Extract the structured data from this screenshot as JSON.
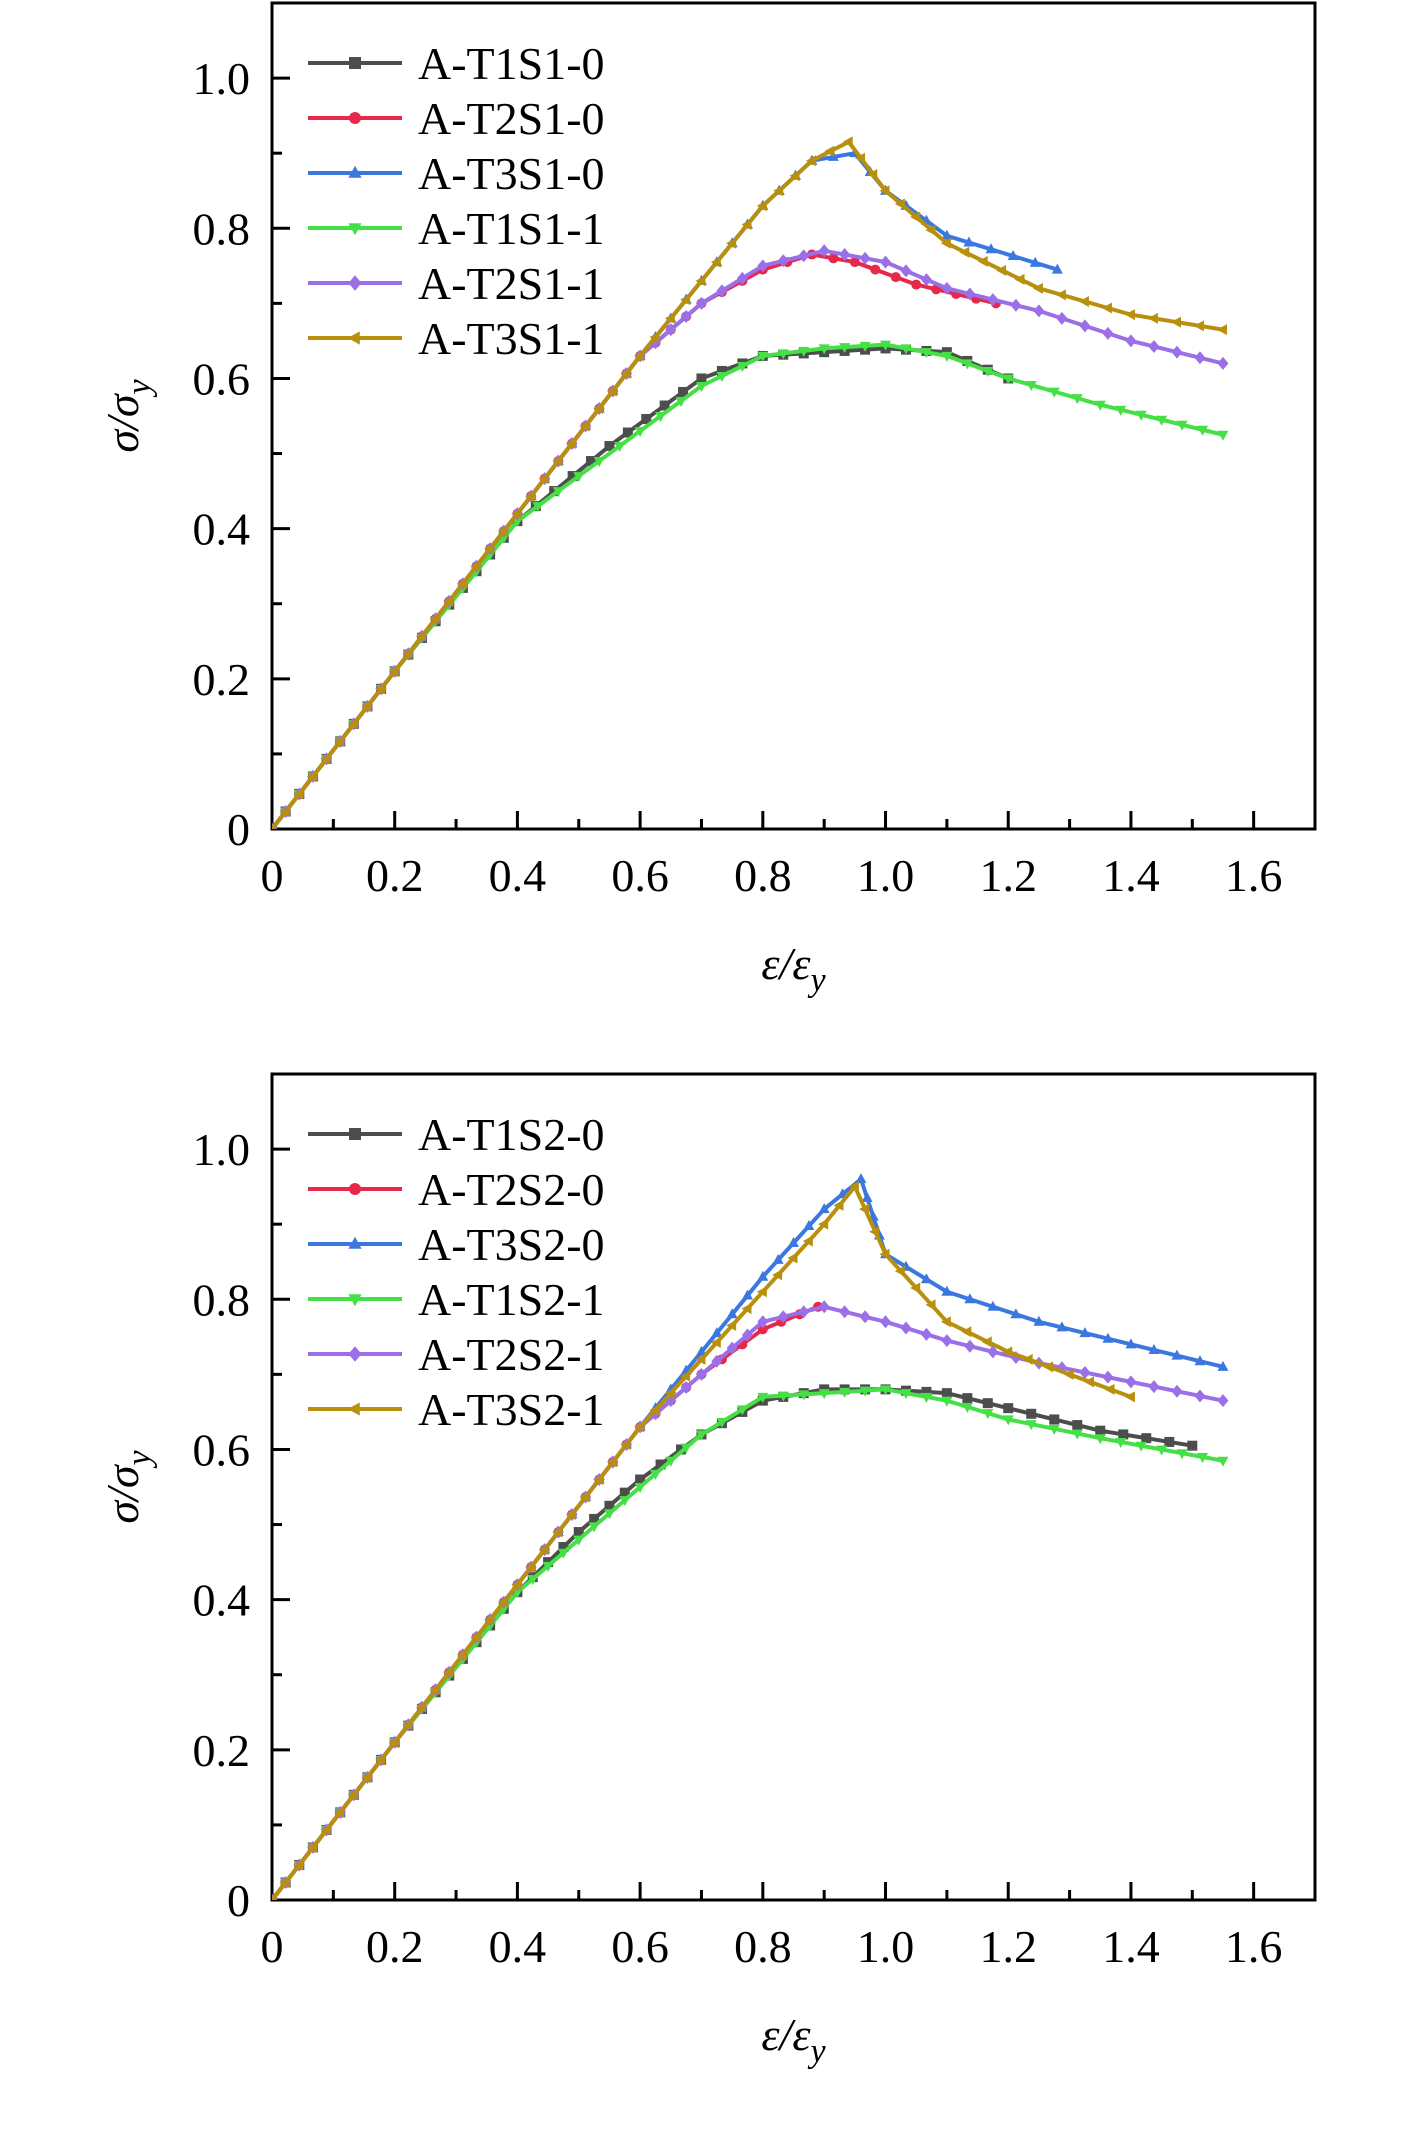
{
  "chart_data": [
    {
      "type": "line",
      "title": "",
      "xlabel": "ε/ε_y",
      "ylabel": "σ/σ_y",
      "xlim": [
        0,
        1.7
      ],
      "ylim": [
        0,
        1.1
      ],
      "xticks": [
        0,
        0.2,
        0.4,
        0.6,
        0.8,
        1.0,
        1.2,
        1.4,
        1.6
      ],
      "yticks": [
        0,
        0.2,
        0.4,
        0.6,
        0.8,
        1.0
      ],
      "xtick_labels": [
        "0",
        "0.2",
        "0.4",
        "0.6",
        "0.8",
        "1.0",
        "1.2",
        "1.4",
        "1.6"
      ],
      "ytick_labels": [
        "0",
        "0.2",
        "0.4",
        "0.6",
        "0.8",
        "1.0"
      ],
      "grid": false,
      "legend_position": "top-left",
      "series": [
        {
          "name": "A-T1S1-0",
          "color": "#4d4d4d",
          "marker": "square",
          "x": [
            0,
            0.2,
            0.4,
            0.55,
            0.7,
            0.8,
            0.9,
            1.0,
            1.1,
            1.2
          ],
          "y": [
            0,
            0.21,
            0.41,
            0.51,
            0.6,
            0.63,
            0.635,
            0.64,
            0.635,
            0.6
          ]
        },
        {
          "name": "A-T2S1-0",
          "color": "#e8284b",
          "marker": "circle",
          "x": [
            0,
            0.2,
            0.4,
            0.6,
            0.7,
            0.8,
            0.88,
            0.95,
            1.05,
            1.18
          ],
          "y": [
            0,
            0.21,
            0.42,
            0.63,
            0.7,
            0.745,
            0.765,
            0.755,
            0.725,
            0.7
          ]
        },
        {
          "name": "A-T3S1-0",
          "color": "#3a78e0",
          "marker": "triangle-up",
          "x": [
            0,
            0.2,
            0.4,
            0.6,
            0.7,
            0.8,
            0.88,
            0.95,
            1.0,
            1.1,
            1.28
          ],
          "y": [
            0,
            0.21,
            0.42,
            0.63,
            0.73,
            0.83,
            0.89,
            0.9,
            0.85,
            0.79,
            0.745
          ]
        },
        {
          "name": "A-T1S1-1",
          "color": "#45e045",
          "marker": "triangle-down",
          "x": [
            0,
            0.2,
            0.4,
            0.5,
            0.6,
            0.7,
            0.8,
            0.9,
            1.0,
            1.1,
            1.2,
            1.35,
            1.55
          ],
          "y": [
            0,
            0.21,
            0.41,
            0.47,
            0.53,
            0.59,
            0.63,
            0.64,
            0.645,
            0.63,
            0.6,
            0.565,
            0.525
          ]
        },
        {
          "name": "A-T2S1-1",
          "color": "#9b6fe8",
          "marker": "diamond",
          "x": [
            0,
            0.2,
            0.4,
            0.6,
            0.7,
            0.8,
            0.9,
            1.0,
            1.1,
            1.25,
            1.4,
            1.55
          ],
          "y": [
            0,
            0.21,
            0.42,
            0.63,
            0.7,
            0.75,
            0.77,
            0.755,
            0.72,
            0.69,
            0.65,
            0.62
          ]
        },
        {
          "name": "A-T3S1-1",
          "color": "#b8900e",
          "marker": "triangle-left",
          "x": [
            0,
            0.2,
            0.4,
            0.6,
            0.7,
            0.8,
            0.88,
            0.94,
            1.0,
            1.1,
            1.25,
            1.4,
            1.55
          ],
          "y": [
            0,
            0.21,
            0.42,
            0.63,
            0.73,
            0.83,
            0.89,
            0.915,
            0.85,
            0.78,
            0.72,
            0.685,
            0.665
          ]
        }
      ]
    },
    {
      "type": "line",
      "title": "",
      "xlabel": "ε/ε_y",
      "ylabel": "σ/σ_y",
      "xlim": [
        0,
        1.7
      ],
      "ylim": [
        0,
        1.1
      ],
      "xticks": [
        0,
        0.2,
        0.4,
        0.6,
        0.8,
        1.0,
        1.2,
        1.4,
        1.6
      ],
      "yticks": [
        0,
        0.2,
        0.4,
        0.6,
        0.8,
        1.0
      ],
      "xtick_labels": [
        "0",
        "0.2",
        "0.4",
        "0.6",
        "0.8",
        "1.0",
        "1.2",
        "1.4",
        "1.6"
      ],
      "ytick_labels": [
        "0",
        "0.2",
        "0.4",
        "0.6",
        "0.8",
        "1.0"
      ],
      "grid": false,
      "legend_position": "top-left",
      "series": [
        {
          "name": "A-T1S2-0",
          "color": "#4d4d4d",
          "marker": "square",
          "x": [
            0,
            0.2,
            0.4,
            0.5,
            0.6,
            0.7,
            0.8,
            0.9,
            1.0,
            1.1,
            1.2,
            1.35,
            1.5
          ],
          "y": [
            0,
            0.21,
            0.41,
            0.49,
            0.56,
            0.62,
            0.665,
            0.68,
            0.68,
            0.675,
            0.655,
            0.625,
            0.605
          ]
        },
        {
          "name": "A-T2S2-0",
          "color": "#e8284b",
          "marker": "circle",
          "x": [
            0,
            0.2,
            0.4,
            0.6,
            0.7,
            0.8,
            0.89
          ],
          "y": [
            0,
            0.21,
            0.42,
            0.63,
            0.7,
            0.76,
            0.79
          ]
        },
        {
          "name": "A-T3S2-0",
          "color": "#3a78e0",
          "marker": "triangle-up",
          "x": [
            0,
            0.2,
            0.4,
            0.6,
            0.7,
            0.8,
            0.9,
            0.96,
            1.0,
            1.1,
            1.25,
            1.4,
            1.55
          ],
          "y": [
            0,
            0.21,
            0.42,
            0.63,
            0.73,
            0.83,
            0.92,
            0.96,
            0.86,
            0.81,
            0.77,
            0.74,
            0.71
          ]
        },
        {
          "name": "A-T1S2-1",
          "color": "#45e045",
          "marker": "triangle-down",
          "x": [
            0,
            0.2,
            0.4,
            0.5,
            0.6,
            0.7,
            0.8,
            0.9,
            1.0,
            1.1,
            1.2,
            1.35,
            1.55
          ],
          "y": [
            0,
            0.21,
            0.41,
            0.48,
            0.55,
            0.62,
            0.67,
            0.675,
            0.68,
            0.665,
            0.64,
            0.615,
            0.585
          ]
        },
        {
          "name": "A-T2S2-1",
          "color": "#9b6fe8",
          "marker": "diamond",
          "x": [
            0,
            0.2,
            0.4,
            0.6,
            0.7,
            0.8,
            0.9,
            1.0,
            1.1,
            1.25,
            1.4,
            1.55
          ],
          "y": [
            0,
            0.21,
            0.42,
            0.63,
            0.7,
            0.77,
            0.79,
            0.77,
            0.745,
            0.715,
            0.69,
            0.665
          ]
        },
        {
          "name": "A-T3S2-1",
          "color": "#b8900e",
          "marker": "triangle-left",
          "x": [
            0,
            0.2,
            0.4,
            0.6,
            0.7,
            0.8,
            0.9,
            0.95,
            1.0,
            1.1,
            1.2,
            1.3,
            1.4
          ],
          "y": [
            0,
            0.21,
            0.42,
            0.63,
            0.72,
            0.81,
            0.9,
            0.95,
            0.86,
            0.77,
            0.73,
            0.7,
            0.67
          ]
        }
      ]
    }
  ]
}
